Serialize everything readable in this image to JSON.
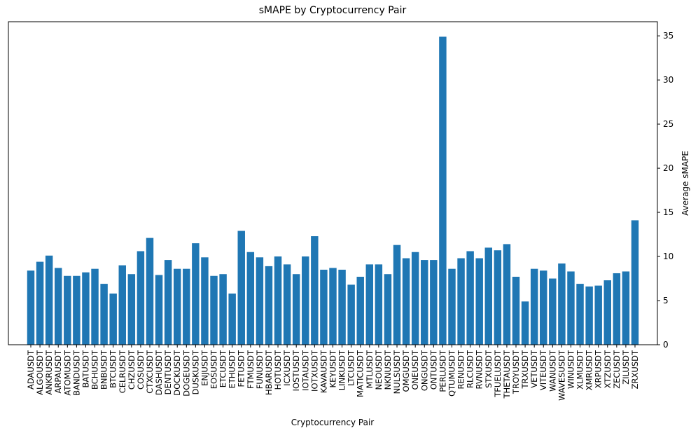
{
  "chart_data": {
    "type": "bar",
    "title": "sMAPE by Cryptocurrency Pair",
    "xlabel": "Cryptocurrency Pair",
    "ylabel": "Average sMAPE",
    "y_axis_side": "right",
    "ylim": [
      0,
      36.6
    ],
    "yticks": [
      0,
      5,
      10,
      15,
      20,
      25,
      30,
      35
    ],
    "grid": false,
    "bar_color": "#1f77b4",
    "categories": [
      "ADAUSDT",
      "ALGOUSDT",
      "ANKRUSDT",
      "ARPAUSDT",
      "ATOMUSDT",
      "BANDUSDT",
      "BATUSDT",
      "BCHUSDT",
      "BNBUSDT",
      "BTCUSDT",
      "CELRUSDT",
      "CHZUSDT",
      "COSUSDT",
      "CTXCUSDT",
      "DASHUSDT",
      "DENTUSDT",
      "DOCKUSDT",
      "DOGEUSDT",
      "DUSKUSDT",
      "ENJUSDT",
      "EOSUSDT",
      "ETCUSDT",
      "ETHUSDT",
      "FETUSDT",
      "FTMUSDT",
      "FUNUSDT",
      "HBARUSDT",
      "HOTUSDT",
      "ICXUSDT",
      "IOSTUSDT",
      "IOTAUSDT",
      "IOTXUSDT",
      "KAVAUSDT",
      "KEYUSDT",
      "LINKUSDT",
      "LTCUSDT",
      "MATICUSDT",
      "MTLUSDT",
      "NEOUSDT",
      "NKNUSDT",
      "NULSUSDT",
      "OMGUSDT",
      "ONEUSDT",
      "ONGUSDT",
      "ONTUSDT",
      "PERLUSDT",
      "QTUMUSDT",
      "RENUSDT",
      "RLCUSDT",
      "RVNUSDT",
      "STXUSDT",
      "TFUELUSDT",
      "THETAUSDT",
      "TROYUSDT",
      "TRXUSDT",
      "VETUSDT",
      "VITEUSDT",
      "WANUSDT",
      "WAVESUSDT",
      "WINUSDT",
      "XLMUSDT",
      "XMRUSDT",
      "XRPUSDT",
      "XTZUSDT",
      "ZECUSDT",
      "ZILUSDT",
      "ZRXUSDT"
    ],
    "values": [
      8.4,
      9.4,
      10.1,
      8.7,
      7.8,
      7.8,
      8.2,
      8.6,
      6.9,
      5.8,
      9.0,
      8.0,
      10.6,
      12.1,
      7.9,
      9.6,
      8.6,
      8.6,
      11.5,
      9.9,
      7.8,
      8.0,
      5.8,
      12.9,
      10.5,
      9.9,
      8.9,
      10.0,
      9.1,
      8.0,
      10.0,
      12.3,
      8.5,
      8.7,
      8.5,
      6.8,
      7.7,
      9.1,
      9.1,
      8.0,
      11.3,
      9.8,
      10.5,
      9.6,
      9.6,
      34.9,
      8.6,
      9.8,
      10.6,
      9.8,
      11.0,
      10.7,
      11.4,
      7.7,
      4.9,
      8.6,
      8.4,
      7.5,
      9.2,
      8.3,
      6.9,
      6.6,
      6.7,
      7.3,
      8.1,
      8.3,
      14.1
    ]
  }
}
